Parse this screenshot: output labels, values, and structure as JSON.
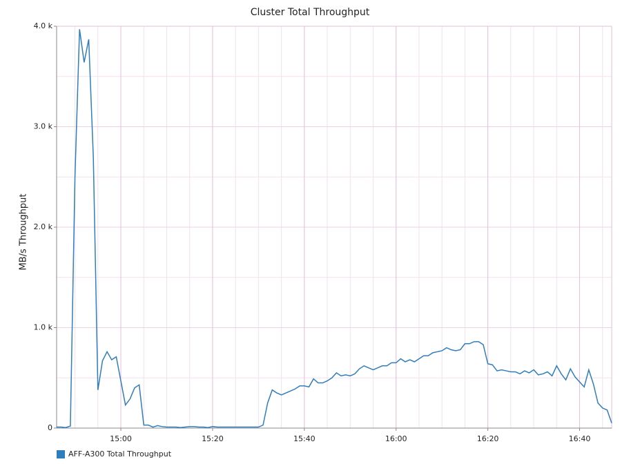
{
  "chart_data": {
    "type": "line",
    "title": "Cluster Total Throughput",
    "y_label": "MB/s Throughput",
    "x": [
      "14:46",
      "14:47",
      "14:48",
      "14:49",
      "14:50",
      "14:51",
      "14:52",
      "14:53",
      "14:54",
      "14:55",
      "14:56",
      "14:57",
      "14:58",
      "14:59",
      "15:00",
      "15:01",
      "15:02",
      "15:03",
      "15:04",
      "15:05",
      "15:06",
      "15:07",
      "15:08",
      "15:09",
      "15:10",
      "15:11",
      "15:12",
      "15:13",
      "15:14",
      "15:15",
      "15:16",
      "15:17",
      "15:18",
      "15:19",
      "15:20",
      "15:21",
      "15:22",
      "15:23",
      "15:24",
      "15:25",
      "15:26",
      "15:27",
      "15:28",
      "15:29",
      "15:30",
      "15:31",
      "15:32",
      "15:33",
      "15:34",
      "15:35",
      "15:36",
      "15:37",
      "15:38",
      "15:39",
      "15:40",
      "15:41",
      "15:42",
      "15:43",
      "15:44",
      "15:45",
      "15:46",
      "15:47",
      "15:48",
      "15:49",
      "15:50",
      "15:51",
      "15:52",
      "15:53",
      "15:54",
      "15:55",
      "15:56",
      "15:57",
      "15:58",
      "15:59",
      "16:00",
      "16:01",
      "16:02",
      "16:03",
      "16:04",
      "16:05",
      "16:06",
      "16:07",
      "16:08",
      "16:09",
      "16:10",
      "16:11",
      "16:12",
      "16:13",
      "16:14",
      "16:15",
      "16:16",
      "16:17",
      "16:18",
      "16:19",
      "16:20",
      "16:21",
      "16:22",
      "16:23",
      "16:24",
      "16:25",
      "16:26",
      "16:27",
      "16:28",
      "16:29",
      "16:30",
      "16:31",
      "16:32",
      "16:33",
      "16:34",
      "16:35",
      "16:36",
      "16:37",
      "16:38",
      "16:39",
      "16:40",
      "16:41",
      "16:42",
      "16:43",
      "16:44",
      "16:45",
      "16:46",
      "16:47"
    ],
    "series": [
      {
        "name": "AFF-A300 Total Throughput",
        "color": "#2f7dbd",
        "values": [
          10,
          10,
          5,
          20,
          2500,
          3970,
          3640,
          3870,
          2700,
          380,
          670,
          760,
          680,
          710,
          470,
          230,
          290,
          400,
          430,
          30,
          30,
          10,
          25,
          15,
          10,
          10,
          10,
          5,
          10,
          15,
          15,
          10,
          10,
          5,
          15,
          10,
          10,
          10,
          10,
          10,
          10,
          10,
          10,
          10,
          10,
          30,
          250,
          380,
          350,
          330,
          350,
          370,
          390,
          420,
          420,
          410,
          490,
          450,
          450,
          470,
          500,
          550,
          520,
          530,
          520,
          540,
          590,
          620,
          600,
          580,
          600,
          620,
          620,
          650,
          650,
          690,
          660,
          680,
          660,
          690,
          720,
          720,
          750,
          760,
          770,
          800,
          780,
          770,
          780,
          840,
          840,
          860,
          860,
          830,
          640,
          630,
          570,
          580,
          570,
          560,
          560,
          540,
          570,
          550,
          580,
          530,
          540,
          560,
          520,
          620,
          540,
          480,
          590,
          510,
          460,
          410,
          580,
          440,
          250,
          200,
          180,
          50
        ]
      }
    ],
    "xlim": [
      "14:46",
      "16:47"
    ],
    "xticks": [
      "15:00",
      "15:20",
      "15:40",
      "16:00",
      "16:20",
      "16:40"
    ],
    "ylim": [
      0,
      4000
    ],
    "yticks": [
      0,
      {
        "value": 1000,
        "label": "1.0 k"
      },
      {
        "value": 2000,
        "label": "2.0 k"
      },
      {
        "value": 3000,
        "label": "3.0 k"
      },
      {
        "value": 4000,
        "label": "4.0 k"
      }
    ],
    "grid": true
  }
}
